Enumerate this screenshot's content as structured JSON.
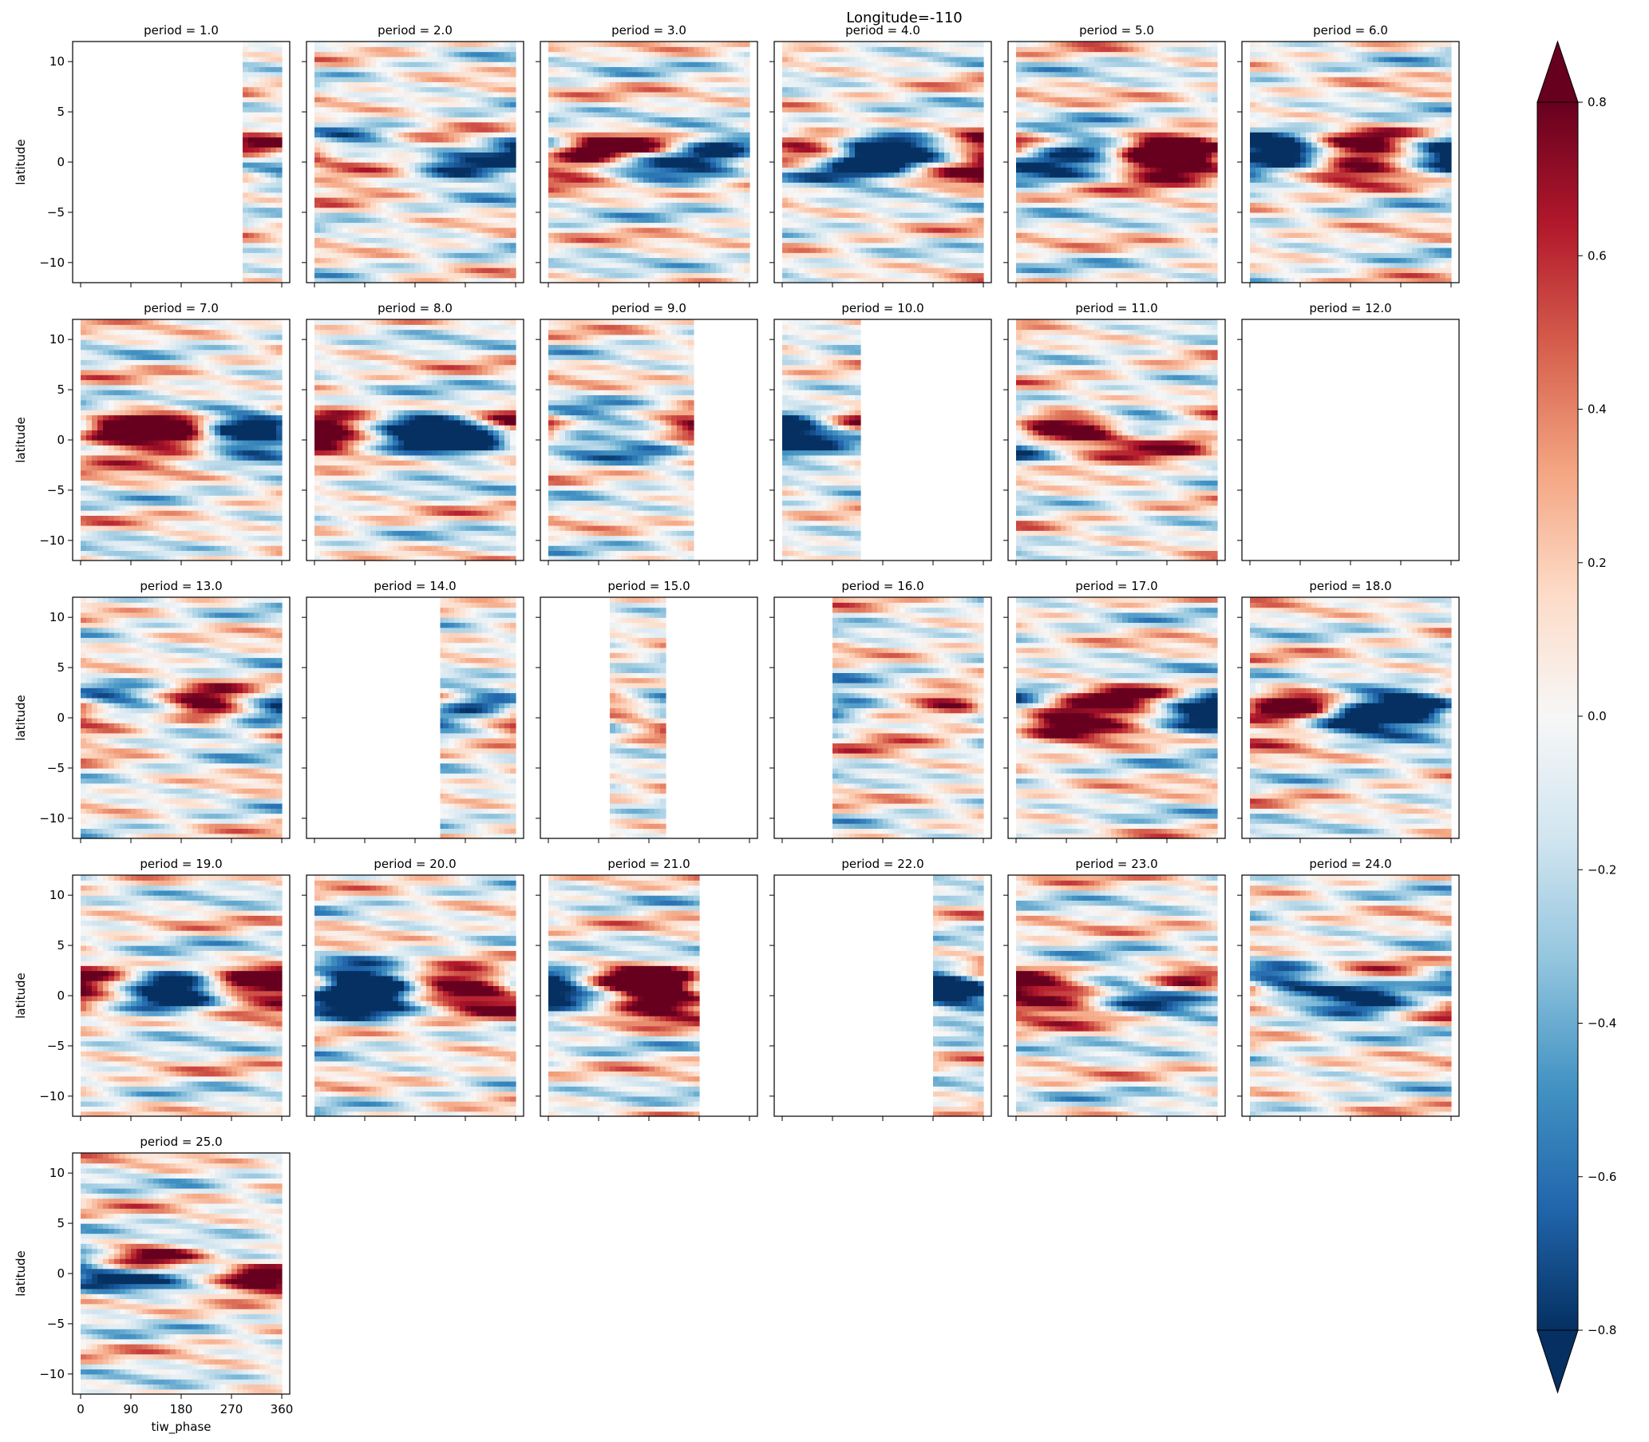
{
  "chart_data": {
    "type": "heatmap",
    "title": "Longitude=-110",
    "xlabel": "tiw_phase",
    "ylabel": "latitude",
    "x_range": [
      0,
      360
    ],
    "y_range": [
      -12,
      12
    ],
    "x_ticks": [
      0,
      90,
      180,
      270,
      360
    ],
    "y_ticks": [
      10,
      5,
      0,
      -5,
      -10
    ],
    "colormap": "RdBu_r",
    "color_range": [
      -0.8,
      0.8
    ],
    "colorbar_ticks": [
      0.8,
      0.6,
      0.4,
      0.2,
      0.0,
      -0.2,
      -0.4,
      -0.6,
      -0.8
    ],
    "colorbar_extend": "both",
    "colors": {
      "negative_extreme": "#053061",
      "positive_extreme": "#67001f",
      "zero": "#f7f7f7"
    },
    "layout": {
      "rows": 5,
      "cols": 6
    },
    "panels": [
      {
        "title": "period = 1.0",
        "period": 1,
        "data_x_range": [
          290,
          360
        ],
        "pattern": 1
      },
      {
        "title": "period = 2.0",
        "period": 2,
        "data_x_range": [
          0,
          360
        ],
        "pattern": 2
      },
      {
        "title": "period = 3.0",
        "period": 3,
        "data_x_range": [
          0,
          360
        ],
        "pattern": 3
      },
      {
        "title": "period = 4.0",
        "period": 4,
        "data_x_range": [
          0,
          360
        ],
        "pattern": 4
      },
      {
        "title": "period = 5.0",
        "period": 5,
        "data_x_range": [
          0,
          360
        ],
        "pattern": 5
      },
      {
        "title": "period = 6.0",
        "period": 6,
        "data_x_range": [
          0,
          360
        ],
        "pattern": 6
      },
      {
        "title": "period = 7.0",
        "period": 7,
        "data_x_range": [
          0,
          360
        ],
        "pattern": 7
      },
      {
        "title": "period = 8.0",
        "period": 8,
        "data_x_range": [
          0,
          360
        ],
        "pattern": 8
      },
      {
        "title": "period = 9.0",
        "period": 9,
        "data_x_range": [
          0,
          260
        ],
        "pattern": 9
      },
      {
        "title": "period = 10.0",
        "period": 10,
        "data_x_range": [
          0,
          140
        ],
        "pattern": 10
      },
      {
        "title": "period = 11.0",
        "period": 11,
        "data_x_range": [
          0,
          360
        ],
        "pattern": 11
      },
      {
        "title": "period = 12.0",
        "period": 12,
        "data_x_range": null,
        "pattern": 0
      },
      {
        "title": "period = 13.0",
        "period": 13,
        "data_x_range": [
          0,
          360
        ],
        "pattern": 13
      },
      {
        "title": "period = 14.0",
        "period": 14,
        "data_x_range": [
          225,
          360
        ],
        "pattern": 14
      },
      {
        "title": "period = 15.0",
        "period": 15,
        "data_x_range": [
          110,
          210
        ],
        "pattern": 15
      },
      {
        "title": "period = 16.0",
        "period": 16,
        "data_x_range": [
          90,
          360
        ],
        "pattern": 16
      },
      {
        "title": "period = 17.0",
        "period": 17,
        "data_x_range": [
          0,
          360
        ],
        "pattern": 17
      },
      {
        "title": "period = 18.0",
        "period": 18,
        "data_x_range": [
          0,
          360
        ],
        "pattern": 18
      },
      {
        "title": "period = 19.0",
        "period": 19,
        "data_x_range": [
          0,
          360
        ],
        "pattern": 19
      },
      {
        "title": "period = 20.0",
        "period": 20,
        "data_x_range": [
          0,
          360
        ],
        "pattern": 20
      },
      {
        "title": "period = 21.0",
        "period": 21,
        "data_x_range": [
          0,
          270
        ],
        "pattern": 21
      },
      {
        "title": "period = 22.0",
        "period": 22,
        "data_x_range": [
          270,
          360
        ],
        "pattern": 22
      },
      {
        "title": "period = 23.0",
        "period": 23,
        "data_x_range": [
          0,
          360
        ],
        "pattern": 23
      },
      {
        "title": "period = 24.0",
        "period": 24,
        "data_x_range": [
          0,
          360
        ],
        "pattern": 24
      },
      {
        "title": "period = 25.0",
        "period": 25,
        "data_x_range": [
          0,
          360
        ],
        "pattern": 25
      }
    ]
  }
}
